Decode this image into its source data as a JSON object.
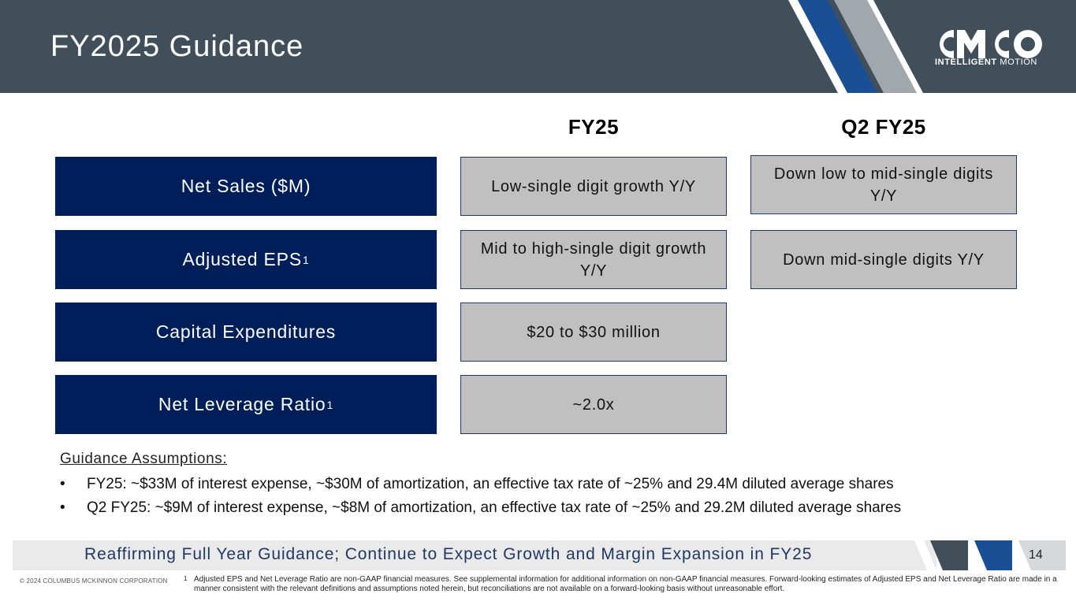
{
  "header": {
    "title": "FY2025 Guidance",
    "logo_text_bold": "INTELLIGENT",
    "logo_text_light": "MOTION",
    "logo_name": "cmco-logo",
    "colors": {
      "bar": "#404f5a",
      "stripe_blue": "#1a4f96",
      "stripe_grey": "#a0a8ae",
      "stripe_white": "#ffffff"
    }
  },
  "columns": {
    "fy25": "FY25",
    "q2_fy25": "Q2 FY25"
  },
  "rows": [
    {
      "label": "Net Sales ($M)",
      "sup": "",
      "fy25": "Low-single digit growth Y/Y",
      "q2": "Down low to mid-single digits Y/Y"
    },
    {
      "label": "Adjusted EPS",
      "sup": "1",
      "fy25": "Mid to high-single digit growth Y/Y",
      "q2": "Down mid-single digits Y/Y"
    },
    {
      "label": "Capital Expenditures",
      "sup": "",
      "fy25": "$20 to $30 million",
      "q2": ""
    },
    {
      "label": "Net Leverage Ratio",
      "sup": "1",
      "fy25": "~2.0x",
      "q2": ""
    }
  ],
  "assumptions": {
    "title": "Guidance Assumptions:",
    "bullet_char": "•",
    "items": [
      "FY25: ~$33M of interest expense, ~$30M of amortization, an effective tax rate of ~25% and 29.4M diluted average shares",
      "Q2 FY25: ~$9M of interest expense, ~$8M of amortization, an effective tax rate of ~25% and 29.2M diluted average shares"
    ]
  },
  "banner": {
    "text": "Reaffirming Full Year Guidance; Continue to Expect Growth and Margin Expansion in FY25",
    "page_number": "14"
  },
  "footer": {
    "copyright": "© 2024 COLUMBUS MCKINNON CORPORATION",
    "footnote_mark": "1",
    "footnote": "Adjusted EPS and Net Leverage Ratio are non-GAAP financial measures. See supplemental information for additional information on non-GAAP financial measures. Forward-looking estimates of Adjusted EPS and Net Leverage Ratio are made in a manner consistent with the relevant definitions and assumptions noted herein, but reconciliations are not available on a forward-looking basis without unreasonable effort."
  }
}
